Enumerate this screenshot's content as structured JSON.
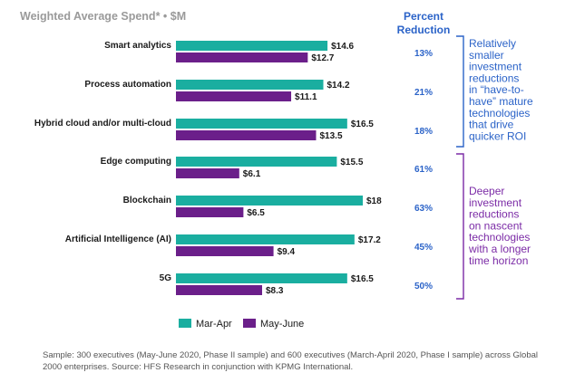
{
  "chart_data": {
    "type": "bar",
    "orientation": "horizontal",
    "title": "Weighted Average Spend* • $M",
    "categories": [
      "Smart analytics",
      "Process automation",
      "Hybrid cloud and/or multi-cloud",
      "Edge computing",
      "Blockchain",
      "Artificial Intelligence (AI)",
      "5G"
    ],
    "series": [
      {
        "name": "Mar-Apr",
        "color": "#1aaea0",
        "values": [
          14.6,
          14.2,
          16.5,
          15.5,
          18,
          17.2,
          16.5
        ],
        "labels": [
          "$14.6",
          "$14.2",
          "$16.5",
          "$15.5",
          "$18",
          "$17.2",
          "$16.5"
        ]
      },
      {
        "name": "May-June",
        "color": "#6b1f8a",
        "values": [
          12.7,
          11.1,
          13.5,
          6.1,
          6.5,
          9.4,
          8.3
        ],
        "labels": [
          "$12.7",
          "$11.1",
          "$13.5",
          "$6.1",
          "$6.5",
          "$9.4",
          "$8.3"
        ]
      }
    ],
    "percent_header": [
      "Percent",
      "Reduction"
    ],
    "percent_reduction": [
      "13%",
      "21%",
      "18%",
      "61%",
      "63%",
      "45%",
      "50%"
    ],
    "xlim": [
      0,
      18
    ],
    "annotations": [
      {
        "group": "top",
        "color": "#2b63c8",
        "lines": [
          "Relatively",
          "smaller",
          "investment",
          "reductions",
          "in “have-to-",
          "have” mature",
          "technologies",
          "that drive",
          "quicker ROI"
        ]
      },
      {
        "group": "bottom",
        "color": "#7b2ba6",
        "lines": [
          "Deeper",
          "investment",
          "reductions",
          "on nascent",
          "technologies",
          "with a longer",
          "time horizon"
        ]
      }
    ],
    "legend": [
      "Mar-Apr",
      "May-June"
    ]
  },
  "footnote": "Sample: 300 executives (May-June 2020, Phase II sample) and 600 executives (March-April 2020, Phase I sample) across Global 2000 enterprises. Source: HFS Research in conjunction with KPMG International."
}
